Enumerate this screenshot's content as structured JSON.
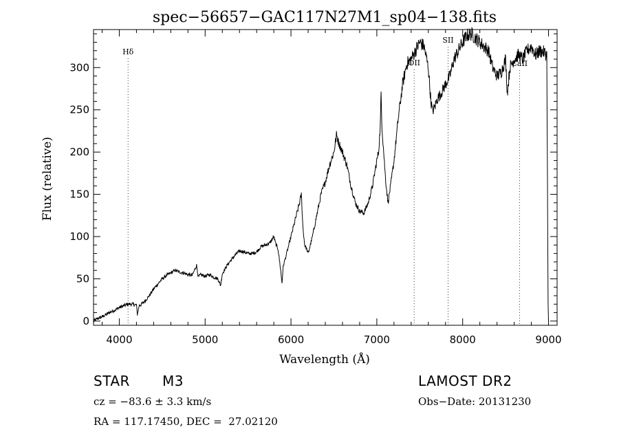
{
  "chart_data": {
    "type": "line",
    "title": "spec−56657−GAC117N27M1_sp04−138.fits",
    "xlabel": "Wavelength (Å)",
    "ylabel": "Flux (relative)",
    "xlim": [
      3700,
      9100
    ],
    "ylim": [
      -5,
      345
    ],
    "xticks": [
      4000,
      5000,
      6000,
      7000,
      8000,
      9000
    ],
    "yticks": [
      0,
      50,
      100,
      150,
      200,
      250,
      300
    ],
    "grid": false,
    "line_color": "#000000",
    "spectral_lines": [
      {
        "name": "Hδ",
        "x": 4102
      },
      {
        "name": "OII",
        "x": 7435
      },
      {
        "name": "SII",
        "x": 7830
      },
      {
        "name": "CaII",
        "x": 8662
      }
    ],
    "series": [
      {
        "x": [
          3700,
          3750,
          3800,
          3850,
          3900,
          3950,
          4000,
          4050,
          4100,
          4150,
          4200,
          4210,
          4230,
          4260,
          4300,
          4350,
          4400,
          4450,
          4500,
          4550,
          4600,
          4650,
          4700,
          4750,
          4800,
          4850,
          4900,
          4920,
          4950,
          5000,
          5050,
          5100,
          5150,
          5180,
          5200,
          5250,
          5300,
          5350,
          5400,
          5450,
          5500,
          5550,
          5600,
          5650,
          5700,
          5750,
          5800,
          5820,
          5850,
          5880,
          5895,
          5910,
          5950,
          6000,
          6050,
          6100,
          6120,
          6140,
          6160,
          6180,
          6200,
          6250,
          6300,
          6350,
          6400,
          6450,
          6500,
          6530,
          6560,
          6600,
          6650,
          6700,
          6750,
          6800,
          6850,
          6900,
          6950,
          7000,
          7020,
          7040,
          7050,
          7060,
          7080,
          7100,
          7130,
          7160,
          7200,
          7250,
          7300,
          7350,
          7400,
          7450,
          7500,
          7550,
          7600,
          7630,
          7650,
          7680,
          7700,
          7750,
          7800,
          7850,
          7900,
          7950,
          8000,
          8050,
          8100,
          8150,
          8200,
          8250,
          8300,
          8350,
          8400,
          8450,
          8500,
          8520,
          8550,
          8600,
          8650,
          8700,
          8750,
          8800,
          8850,
          8900,
          8950,
          8980,
          8995,
          9000
        ],
        "y": [
          0,
          3,
          5,
          8,
          11,
          13,
          16,
          18,
          20,
          20,
          19,
          8,
          18,
          20,
          24,
          30,
          38,
          44,
          50,
          54,
          57,
          60,
          58,
          57,
          55,
          54,
          66,
          52,
          55,
          53,
          55,
          52,
          50,
          42,
          56,
          65,
          72,
          78,
          83,
          82,
          80,
          80,
          82,
          88,
          90,
          92,
          100,
          92,
          85,
          60,
          45,
          65,
          80,
          100,
          120,
          140,
          150,
          110,
          90,
          86,
          80,
          100,
          125,
          150,
          165,
          185,
          200,
          220,
          210,
          200,
          185,
          160,
          140,
          130,
          128,
          140,
          160,
          190,
          200,
          230,
          270,
          230,
          200,
          170,
          140,
          160,
          190,
          240,
          280,
          305,
          310,
          320,
          330,
          325,
          300,
          260,
          248,
          255,
          262,
          270,
          280,
          290,
          310,
          320,
          330,
          338,
          340,
          335,
          330,
          325,
          320,
          300,
          290,
          295,
          310,
          270,
          300,
          310,
          315,
          310,
          320,
          325,
          315,
          320,
          318,
          315,
          20,
          0
        ]
      }
    ],
    "info": {
      "object_class": "STAR",
      "subclass": "M3",
      "cz": "cz = −83.6 ± 3.3 km/s",
      "coords": "RA = 117.17450, DEC =  27.02120",
      "survey": "LAMOST DR2",
      "obs_date": "Obs−Date: 20131230"
    }
  }
}
